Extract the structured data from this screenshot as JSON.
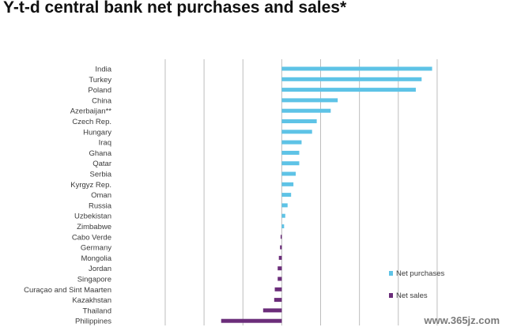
{
  "title": "Y-t-d central bank net purchases and sales*",
  "watermark": "www.365jz.com",
  "chart_data": {
    "type": "bar",
    "orientation": "horizontal",
    "categories": [
      "India",
      "Turkey",
      "Poland",
      "China",
      "Azerbaijan**",
      "Czech Rep.",
      "Hungary",
      "Iraq",
      "Ghana",
      "Qatar",
      "Serbia",
      "Kyrgyz Rep.",
      "Oman",
      "Russia",
      "Uzbekistan",
      "Zimbabwe",
      "Cabo Verde",
      "Germany",
      "Mongolia",
      "Jordan",
      "Singapore",
      "Curaçao and Sint Maarten",
      "Kazakhstan",
      "Thailand",
      "Philippines"
    ],
    "values": [
      129,
      120,
      115,
      48,
      42,
      30,
      26,
      17,
      15,
      15,
      12,
      10,
      8,
      5,
      3,
      2,
      -1,
      -1.5,
      -2.5,
      -3.5,
      -3.5,
      -6,
      -6.5,
      -16,
      -52
    ],
    "series": [
      {
        "name": "Net purchases",
        "color": "#5ec3e6"
      },
      {
        "name": "Net sales",
        "color": "#6b2d7a"
      }
    ],
    "xlim": [
      -140,
      170
    ],
    "grid_step": 33.33,
    "xlabel": "",
    "ylabel": "",
    "grid": true,
    "legend": "bottom-right",
    "tick_labels_shown": false
  }
}
